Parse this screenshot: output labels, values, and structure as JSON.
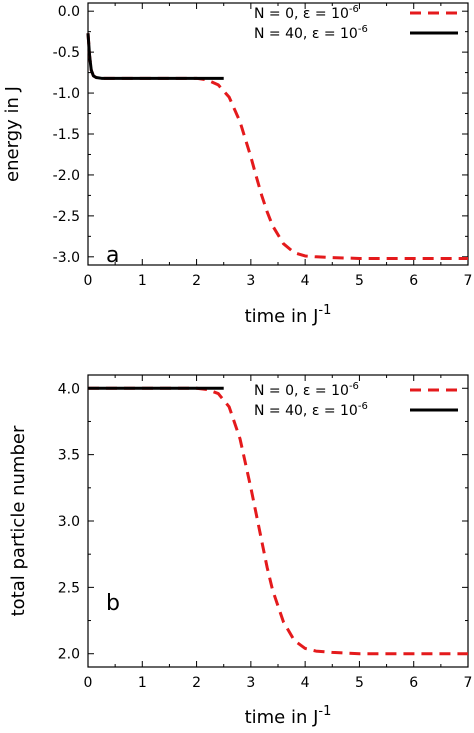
{
  "chart_data": [
    {
      "type": "line",
      "panel_label": "a",
      "xlabel": "time in J",
      "xlabel_sup": "-1",
      "ylabel": "energy in J",
      "xlim": [
        0,
        7
      ],
      "ylim": [
        -3.1,
        0.1
      ],
      "xticks": [
        0,
        1,
        2,
        3,
        4,
        5,
        6,
        7
      ],
      "yticks": [
        0.0,
        -0.5,
        -1.0,
        -1.5,
        -2.0,
        -2.5,
        -3.0
      ],
      "ytick_labels": [
        "0.0",
        "-0.5",
        "-1.0",
        "-1.5",
        "-2.0",
        "-2.5",
        "-3.0"
      ],
      "legend_position": "top-right",
      "series": [
        {
          "name": "N = 0,   ε = 10",
          "name_sup": "-6",
          "color": "#e41a1c",
          "style": "dashed",
          "x": [
            0.0,
            0.03,
            0.06,
            0.1,
            0.15,
            0.25,
            0.5,
            1.0,
            1.5,
            2.0,
            2.2,
            2.4,
            2.6,
            2.8,
            3.0,
            3.1,
            3.2,
            3.3,
            3.4,
            3.6,
            3.8,
            4.0,
            4.2,
            4.5,
            5.0,
            5.5,
            6.0,
            6.5,
            7.0
          ],
          "values": [
            -0.27,
            -0.55,
            -0.72,
            -0.79,
            -0.81,
            -0.82,
            -0.82,
            -0.82,
            -0.82,
            -0.82,
            -0.84,
            -0.9,
            -1.05,
            -1.35,
            -1.78,
            -2.02,
            -2.25,
            -2.45,
            -2.62,
            -2.84,
            -2.95,
            -2.99,
            -3.0,
            -3.01,
            -3.02,
            -3.02,
            -3.02,
            -3.02,
            -3.02
          ]
        },
        {
          "name": "N = 40, ε = 10",
          "name_sup": "-6",
          "color": "#000000",
          "style": "solid",
          "x": [
            0.0,
            0.03,
            0.06,
            0.1,
            0.15,
            0.25,
            0.5,
            1.0,
            1.5,
            2.0,
            2.5
          ],
          "values": [
            -0.27,
            -0.55,
            -0.72,
            -0.79,
            -0.81,
            -0.82,
            -0.82,
            -0.82,
            -0.82,
            -0.82,
            -0.82
          ]
        }
      ]
    },
    {
      "type": "line",
      "panel_label": "b",
      "xlabel": "time in J",
      "xlabel_sup": "-1",
      "ylabel": "total particle number",
      "xlim": [
        0,
        7
      ],
      "ylim": [
        1.9,
        4.1
      ],
      "xticks": [
        0,
        1,
        2,
        3,
        4,
        5,
        6,
        7
      ],
      "yticks": [
        4.0,
        3.5,
        3.0,
        2.5,
        2.0
      ],
      "ytick_labels": [
        "4.0",
        "3.5",
        "3.0",
        "2.5",
        "2.0"
      ],
      "legend_position": "top-right",
      "series": [
        {
          "name": "N = 0,   ε = 10",
          "name_sup": "-6",
          "color": "#e41a1c",
          "style": "dashed",
          "x": [
            0.0,
            0.5,
            1.0,
            1.5,
            2.0,
            2.2,
            2.4,
            2.6,
            2.8,
            3.0,
            3.1,
            3.2,
            3.3,
            3.4,
            3.6,
            3.8,
            4.0,
            4.2,
            4.5,
            5.0,
            5.5,
            6.0,
            6.5,
            7.0
          ],
          "values": [
            4.0,
            4.0,
            4.0,
            4.0,
            4.0,
            3.99,
            3.96,
            3.86,
            3.62,
            3.25,
            3.05,
            2.85,
            2.65,
            2.48,
            2.24,
            2.1,
            2.04,
            2.02,
            2.01,
            2.0,
            2.0,
            2.0,
            2.0,
            2.0
          ]
        },
        {
          "name": "N = 40, ε = 10",
          "name_sup": "-6",
          "color": "#000000",
          "style": "solid",
          "x": [
            0.0,
            0.5,
            1.0,
            1.5,
            2.0,
            2.5
          ],
          "values": [
            4.0,
            4.0,
            4.0,
            4.0,
            4.0,
            4.0
          ]
        }
      ]
    }
  ]
}
